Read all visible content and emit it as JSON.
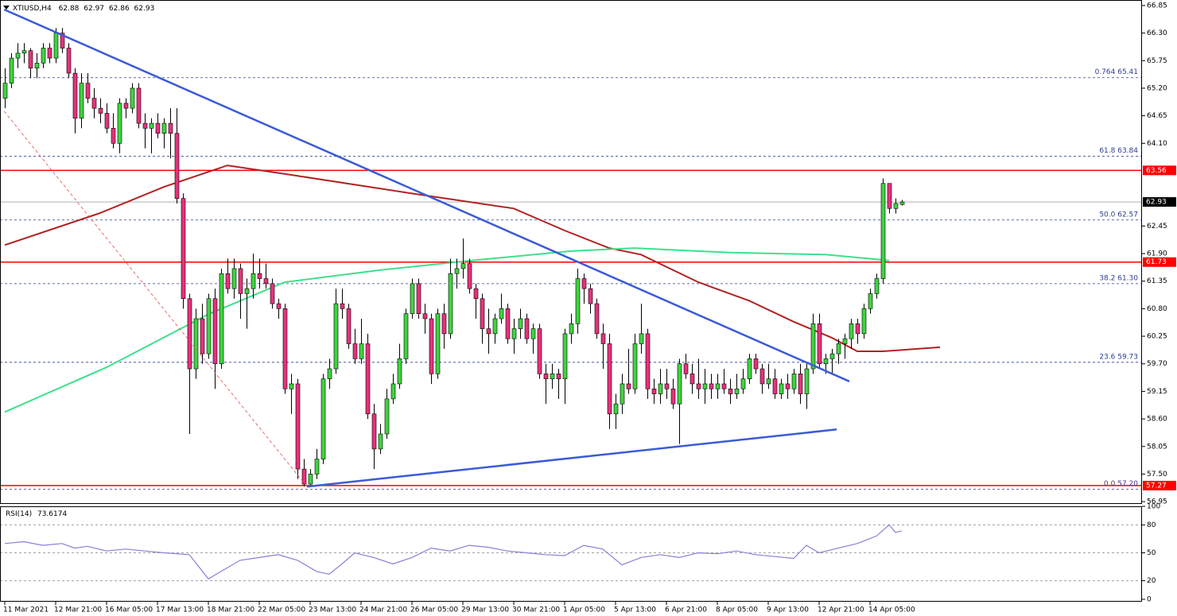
{
  "chart_data": {
    "type": "candlestick",
    "title": "XTIUSD,H4",
    "header_values": [
      62.88,
      62.97,
      62.86,
      62.93
    ],
    "colors": {
      "up": "#3fd43f",
      "down": "#e8307c",
      "wick": "#000000"
    },
    "candles": [
      [
        65.0,
        65.6,
        64.8,
        65.3
      ],
      [
        65.3,
        65.9,
        65.2,
        65.8
      ],
      [
        65.8,
        66.1,
        65.6,
        65.9
      ],
      [
        65.9,
        66.1,
        65.7,
        65.95
      ],
      [
        65.95,
        66.0,
        65.4,
        65.6
      ],
      [
        65.6,
        65.9,
        65.4,
        65.7
      ],
      [
        65.7,
        66.1,
        65.6,
        66.0
      ],
      [
        66.0,
        66.1,
        65.7,
        65.8
      ],
      [
        65.8,
        66.4,
        65.7,
        66.3
      ],
      [
        66.3,
        66.4,
        65.9,
        66.0
      ],
      [
        66.0,
        66.1,
        65.4,
        65.5
      ],
      [
        65.5,
        65.6,
        64.3,
        64.6
      ],
      [
        64.6,
        65.5,
        64.4,
        65.3
      ],
      [
        65.3,
        65.5,
        64.9,
        65.0
      ],
      [
        65.0,
        65.2,
        64.6,
        64.8
      ],
      [
        64.8,
        65.0,
        64.5,
        64.7
      ],
      [
        64.7,
        64.9,
        64.3,
        64.4
      ],
      [
        64.4,
        64.7,
        64.0,
        64.1
      ],
      [
        64.1,
        65.0,
        63.9,
        64.9
      ],
      [
        64.9,
        65.0,
        64.6,
        64.8
      ],
      [
        64.8,
        65.3,
        64.7,
        65.2
      ],
      [
        65.2,
        65.3,
        64.4,
        64.5
      ],
      [
        64.5,
        64.7,
        64.0,
        64.4
      ],
      [
        64.4,
        64.6,
        63.9,
        64.5
      ],
      [
        64.5,
        64.7,
        64.2,
        64.3
      ],
      [
        64.3,
        64.6,
        64.0,
        64.5
      ],
      [
        64.5,
        64.8,
        63.8,
        64.3
      ],
      [
        64.3,
        64.8,
        62.9,
        63.0
      ],
      [
        63.0,
        63.1,
        60.8,
        61.0
      ],
      [
        61.0,
        61.1,
        58.3,
        59.6
      ],
      [
        59.6,
        60.8,
        59.4,
        60.6
      ],
      [
        60.6,
        60.9,
        59.7,
        59.9
      ],
      [
        59.9,
        61.1,
        59.8,
        61.0
      ],
      [
        61.0,
        61.2,
        59.2,
        59.7
      ],
      [
        59.7,
        61.6,
        59.6,
        61.5
      ],
      [
        61.5,
        61.8,
        61.1,
        61.2
      ],
      [
        61.2,
        61.8,
        61.0,
        61.6
      ],
      [
        61.6,
        61.7,
        60.6,
        61.1
      ],
      [
        61.1,
        61.4,
        60.4,
        61.2
      ],
      [
        61.2,
        61.9,
        61.0,
        61.5
      ],
      [
        61.5,
        61.8,
        61.2,
        61.4
      ],
      [
        61.4,
        61.7,
        61.2,
        61.3
      ],
      [
        61.3,
        61.4,
        60.8,
        60.9
      ],
      [
        60.9,
        61.0,
        60.6,
        60.8
      ],
      [
        60.8,
        60.9,
        59.1,
        59.2
      ],
      [
        59.2,
        59.5,
        58.7,
        59.3
      ],
      [
        59.3,
        59.4,
        57.4,
        57.6
      ],
      [
        57.6,
        57.8,
        57.25,
        57.3
      ],
      [
        57.3,
        57.6,
        57.25,
        57.5
      ],
      [
        57.5,
        58.0,
        57.4,
        57.8
      ],
      [
        57.8,
        59.5,
        57.7,
        59.4
      ],
      [
        59.4,
        59.8,
        59.2,
        59.6
      ],
      [
        59.6,
        61.2,
        59.5,
        60.9
      ],
      [
        60.9,
        61.2,
        60.6,
        60.8
      ],
      [
        60.8,
        60.9,
        60.0,
        60.1
      ],
      [
        60.1,
        60.4,
        59.7,
        59.8
      ],
      [
        59.8,
        60.6,
        59.7,
        60.1
      ],
      [
        60.1,
        60.3,
        58.6,
        58.7
      ],
      [
        58.7,
        58.9,
        57.6,
        58.0
      ],
      [
        58.0,
        58.5,
        57.9,
        58.3
      ],
      [
        58.3,
        59.2,
        58.2,
        59.0
      ],
      [
        59.0,
        59.5,
        58.9,
        59.3
      ],
      [
        59.3,
        60.1,
        59.2,
        59.8
      ],
      [
        59.8,
        60.8,
        59.7,
        60.7
      ],
      [
        60.7,
        61.4,
        60.6,
        61.3
      ],
      [
        61.3,
        61.4,
        60.6,
        60.7
      ],
      [
        60.7,
        60.9,
        60.3,
        60.6
      ],
      [
        60.6,
        60.7,
        59.3,
        59.5
      ],
      [
        59.5,
        60.8,
        59.4,
        60.7
      ],
      [
        60.7,
        60.9,
        60.0,
        60.3
      ],
      [
        60.3,
        61.8,
        60.2,
        61.5
      ],
      [
        61.5,
        61.8,
        61.2,
        61.6
      ],
      [
        61.6,
        62.2,
        61.4,
        61.7
      ],
      [
        61.7,
        61.8,
        61.1,
        61.2
      ],
      [
        61.2,
        61.3,
        60.6,
        61.0
      ],
      [
        61.0,
        61.1,
        60.1,
        60.4
      ],
      [
        60.4,
        60.8,
        59.9,
        60.3
      ],
      [
        60.3,
        60.7,
        60.1,
        60.6
      ],
      [
        60.6,
        61.1,
        60.5,
        60.8
      ],
      [
        60.8,
        60.9,
        60.1,
        60.2
      ],
      [
        60.2,
        60.6,
        59.9,
        60.4
      ],
      [
        60.4,
        60.8,
        60.2,
        60.6
      ],
      [
        60.6,
        60.7,
        60.1,
        60.2
      ],
      [
        60.2,
        60.5,
        59.9,
        60.4
      ],
      [
        60.4,
        60.5,
        59.4,
        59.5
      ],
      [
        59.5,
        59.7,
        58.9,
        59.4
      ],
      [
        59.4,
        59.7,
        59.2,
        59.5
      ],
      [
        59.5,
        59.6,
        59.0,
        59.4
      ],
      [
        59.4,
        60.4,
        58.9,
        60.3
      ],
      [
        60.3,
        60.7,
        60.1,
        60.5
      ],
      [
        60.5,
        61.6,
        60.3,
        61.4
      ],
      [
        61.4,
        61.5,
        60.9,
        61.2
      ],
      [
        61.2,
        61.3,
        60.7,
        60.9
      ],
      [
        60.9,
        61.0,
        60.2,
        60.3
      ],
      [
        60.3,
        60.5,
        59.6,
        60.1
      ],
      [
        60.1,
        60.3,
        58.4,
        58.7
      ],
      [
        58.7,
        59.1,
        58.4,
        58.9
      ],
      [
        58.9,
        59.5,
        58.7,
        59.3
      ],
      [
        59.3,
        60.0,
        59.1,
        59.2
      ],
      [
        59.2,
        60.3,
        59.1,
        60.1
      ],
      [
        60.1,
        60.9,
        59.9,
        60.3
      ],
      [
        60.3,
        60.4,
        59.0,
        59.2
      ],
      [
        59.2,
        59.4,
        58.9,
        59.1
      ],
      [
        59.1,
        59.6,
        58.9,
        59.3
      ],
      [
        59.3,
        59.6,
        59.0,
        59.2
      ],
      [
        59.2,
        59.4,
        58.8,
        58.9
      ],
      [
        58.9,
        59.8,
        58.1,
        59.7
      ],
      [
        59.7,
        59.9,
        59.4,
        59.5
      ],
      [
        59.5,
        59.7,
        59.1,
        59.3
      ],
      [
        59.3,
        59.8,
        59.0,
        59.2
      ],
      [
        59.2,
        59.6,
        58.9,
        59.3
      ],
      [
        59.3,
        59.5,
        59.0,
        59.2
      ],
      [
        59.2,
        59.5,
        59.0,
        59.3
      ],
      [
        59.3,
        59.6,
        59.1,
        59.2
      ],
      [
        59.2,
        59.4,
        58.9,
        59.1
      ],
      [
        59.1,
        59.5,
        59.0,
        59.2
      ],
      [
        59.2,
        59.6,
        59.1,
        59.4
      ],
      [
        59.4,
        59.9,
        59.3,
        59.8
      ],
      [
        59.8,
        59.9,
        59.5,
        59.6
      ],
      [
        59.6,
        59.7,
        59.1,
        59.3
      ],
      [
        59.3,
        59.7,
        59.2,
        59.4
      ],
      [
        59.4,
        59.6,
        59.0,
        59.1
      ],
      [
        59.1,
        59.4,
        59.0,
        59.3
      ],
      [
        59.3,
        59.5,
        59.0,
        59.2
      ],
      [
        59.2,
        59.6,
        59.1,
        59.5
      ],
      [
        59.5,
        59.7,
        58.9,
        59.1
      ],
      [
        59.1,
        59.7,
        58.8,
        59.6
      ],
      [
        59.6,
        60.7,
        59.5,
        60.5
      ],
      [
        60.5,
        60.7,
        59.6,
        59.7
      ],
      [
        59.7,
        59.9,
        59.5,
        59.8
      ],
      [
        59.8,
        60.0,
        59.5,
        59.9
      ],
      [
        59.9,
        60.2,
        59.7,
        60.1
      ],
      [
        60.1,
        60.3,
        59.8,
        60.2
      ],
      [
        60.2,
        60.6,
        60.0,
        60.5
      ],
      [
        60.5,
        60.6,
        60.1,
        60.3
      ],
      [
        60.3,
        60.9,
        60.2,
        60.8
      ],
      [
        60.8,
        61.2,
        60.7,
        61.1
      ],
      [
        61.1,
        61.5,
        61.0,
        61.4
      ],
      [
        61.4,
        63.4,
        61.3,
        63.3
      ],
      [
        63.3,
        63.3,
        62.7,
        62.8
      ],
      [
        62.8,
        63.0,
        62.7,
        62.9
      ],
      [
        62.88,
        62.97,
        62.86,
        62.93
      ]
    ],
    "xlim": [
      -0.75,
      178.625
    ],
    "xticks": [
      {
        "value": 0,
        "label": "11 Mar 2021"
      },
      {
        "value": 8,
        "label": "12 Mar 21:00"
      },
      {
        "value": 16,
        "label": "16 Mar 05:00"
      },
      {
        "value": 24,
        "label": "17 Mar 13:00"
      },
      {
        "value": 32,
        "label": "18 Mar 21:00"
      },
      {
        "value": 40,
        "label": "22 Mar 05:00"
      },
      {
        "value": 48,
        "label": "23 Mar 13:00"
      },
      {
        "value": 56,
        "label": "24 Mar 21:00"
      },
      {
        "value": 64,
        "label": "26 Mar 05:00"
      },
      {
        "value": 72,
        "label": "29 Mar 13:00"
      },
      {
        "value": 80,
        "label": "30 Mar 21:00"
      },
      {
        "value": 88,
        "label": "1 Apr 05:00"
      },
      {
        "value": 96,
        "label": "5 Apr 13:00"
      },
      {
        "value": 104,
        "label": "6 Apr 21:00"
      },
      {
        "value": 112,
        "label": "8 Apr 05:00"
      },
      {
        "value": 120,
        "label": "9 Apr 13:00"
      },
      {
        "value": 128,
        "label": "12 Apr 21:00"
      },
      {
        "value": 136,
        "label": "14 Apr 05:00"
      }
    ],
    "ylim": [
      56.92,
      66.96
    ],
    "yticks": [
      {
        "value": 66.85,
        "label": "66.85"
      },
      {
        "value": 66.3,
        "label": "66.30"
      },
      {
        "value": 65.75,
        "label": "65.75"
      },
      {
        "value": 65.2,
        "label": "65.20"
      },
      {
        "value": 64.65,
        "label": "64.65"
      },
      {
        "value": 64.1,
        "label": "64.10"
      },
      {
        "value": 62.45,
        "label": "62.45"
      },
      {
        "value": 61.9,
        "label": "61.90"
      },
      {
        "value": 61.35,
        "label": "61.35"
      },
      {
        "value": 60.8,
        "label": "60.80"
      },
      {
        "value": 60.25,
        "label": "60.25"
      },
      {
        "value": 59.7,
        "label": "59.70"
      },
      {
        "value": 59.15,
        "label": "59.15"
      },
      {
        "value": 58.6,
        "label": "58.60"
      },
      {
        "value": 58.05,
        "label": "58.05"
      },
      {
        "value": 57.5,
        "label": "57.50"
      },
      {
        "value": 56.95,
        "label": "56.95"
      }
    ],
    "lines": [
      {
        "color": "#b22222",
        "x": [
          0,
          15,
          25,
          35,
          45,
          64,
          80,
          88,
          95,
          100,
          109,
          117,
          124,
          130,
          134,
          138,
          147
        ],
        "values": [
          62.07,
          62.71,
          63.23,
          63.66,
          63.47,
          63.1,
          62.8,
          62.36,
          62.01,
          61.88,
          61.33,
          60.96,
          60.54,
          60.22,
          59.95,
          59.95,
          60.03
        ]
      },
      {
        "color": "#3ee08a",
        "x": [
          0,
          16,
          32,
          44,
          59,
          74,
          89,
          99,
          114,
          129,
          139
        ],
        "values": [
          58.74,
          59.63,
          60.69,
          61.33,
          61.57,
          61.77,
          61.95,
          62.01,
          61.92,
          61.88,
          61.76
        ]
      }
    ],
    "trendlines": [
      {
        "color": "#3b5bd6",
        "dashed": false,
        "x": [
          -0.1,
          132.75
        ],
        "values": [
          66.77,
          59.35
        ]
      },
      {
        "color": "#3b5bd6",
        "dashed": false,
        "x": [
          47.5,
          130.75
        ],
        "values": [
          57.25,
          58.39
        ]
      },
      {
        "color": "#e05050",
        "dashed": true,
        "x": [
          -0.1,
          47.5
        ],
        "values": [
          64.74,
          57.25
        ]
      }
    ],
    "levels": [
      {
        "value": 63.56,
        "color": "#ff0000"
      },
      {
        "value": 61.73,
        "color": "#ff0000"
      },
      {
        "value": 57.27,
        "color": "#ff0000"
      }
    ],
    "last_price": {
      "value": 62.93,
      "color": "#b0b0b0"
    },
    "fib_levels": [
      {
        "value": 65.41,
        "label": "0.764 65.41"
      },
      {
        "value": 63.84,
        "label": "61.8 63.84"
      },
      {
        "value": 62.57,
        "label": "50.0 62.57"
      },
      {
        "value": 61.3,
        "label": "38.2 61.30"
      },
      {
        "value": 59.73,
        "label": "23.6 59.73"
      },
      {
        "value": 57.2,
        "label": "0.0 57.20"
      }
    ],
    "rsi": {
      "name": "RSI(14)",
      "last": 73.6174,
      "color": "#8a7fd6",
      "ylim": [
        0,
        100
      ],
      "yticks": [
        100,
        80,
        50,
        20,
        0
      ],
      "levels": [
        80,
        50,
        20
      ],
      "x": [
        0,
        3,
        6,
        9,
        11,
        13,
        16,
        19,
        22,
        25,
        29,
        32,
        34,
        37,
        40,
        43,
        46,
        49,
        51,
        53,
        55,
        58,
        61,
        64,
        67,
        70,
        73,
        76,
        79,
        82,
        85,
        88,
        91,
        94,
        97,
        100,
        103,
        106,
        109,
        112,
        115,
        118,
        121,
        124,
        126,
        128,
        131,
        134,
        137,
        139,
        140,
        141
      ],
      "values": [
        60,
        62,
        58,
        60,
        55,
        57,
        52,
        54,
        52,
        50,
        48,
        22,
        30,
        42,
        45,
        48,
        42,
        30,
        27,
        38,
        50,
        45,
        38,
        45,
        55,
        52,
        58,
        56,
        52,
        50,
        48,
        47,
        58,
        54,
        37,
        45,
        48,
        45,
        50,
        49,
        52,
        48,
        46,
        44,
        58,
        50,
        55,
        60,
        68,
        80,
        72,
        73.6174
      ]
    }
  }
}
